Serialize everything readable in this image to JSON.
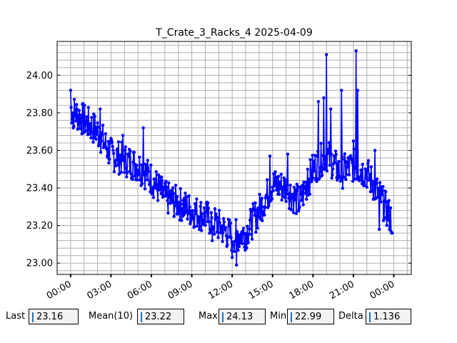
{
  "chart_data": {
    "type": "line",
    "title": "T_Crate_3_Racks_4 2025-04-09",
    "xlabel": "",
    "ylabel": "",
    "x_ticks": [
      "00:00",
      "03:00",
      "06:00",
      "09:00",
      "12:00",
      "15:00",
      "18:00",
      "21:00",
      "00:00"
    ],
    "x_tick_hours": [
      0,
      3,
      6,
      9,
      12,
      15,
      18,
      21,
      24
    ],
    "xlim_hours": [
      -1.0,
      25.3
    ],
    "y_ticks": [
      "23.00",
      "23.20",
      "23.40",
      "23.60",
      "23.80",
      "24.00"
    ],
    "y_tick_values": [
      23.0,
      23.2,
      23.4,
      23.6,
      23.8,
      24.0
    ],
    "ylim": [
      22.94,
      24.18
    ],
    "grid": true,
    "series": [
      {
        "color": "#0000ff",
        "marker": "circle",
        "trend": [
          [
            0.0,
            23.82
          ],
          [
            1.0,
            23.76
          ],
          [
            2.0,
            23.7
          ],
          [
            3.0,
            23.58
          ],
          [
            4.0,
            23.55
          ],
          [
            5.0,
            23.52
          ],
          [
            6.0,
            23.45
          ],
          [
            7.0,
            23.35
          ],
          [
            8.0,
            23.32
          ],
          [
            9.0,
            23.28
          ],
          [
            10.0,
            23.25
          ],
          [
            11.0,
            23.2
          ],
          [
            12.0,
            23.14
          ],
          [
            13.0,
            23.16
          ],
          [
            14.0,
            23.28
          ],
          [
            15.0,
            23.42
          ],
          [
            16.0,
            23.4
          ],
          [
            17.0,
            23.32
          ],
          [
            18.0,
            23.5
          ],
          [
            19.0,
            23.58
          ],
          [
            20.0,
            23.48
          ],
          [
            21.0,
            23.52
          ],
          [
            22.0,
            23.48
          ],
          [
            23.0,
            23.35
          ],
          [
            23.9,
            23.22
          ]
        ],
        "amplitude": 0.09,
        "spikes": [
          [
            0.0,
            23.92
          ],
          [
            0.2,
            23.72
          ],
          [
            2.2,
            23.82
          ],
          [
            3.9,
            23.68
          ],
          [
            5.4,
            23.72
          ],
          [
            10.5,
            23.12
          ],
          [
            12.0,
            23.03
          ],
          [
            12.3,
            22.99
          ],
          [
            14.8,
            23.57
          ],
          [
            16.1,
            23.58
          ],
          [
            17.6,
            23.5
          ],
          [
            18.4,
            23.86
          ],
          [
            18.8,
            23.88
          ],
          [
            19.0,
            24.11
          ],
          [
            19.3,
            23.82
          ],
          [
            20.1,
            23.92
          ],
          [
            21.0,
            23.65
          ],
          [
            21.2,
            24.13
          ],
          [
            21.3,
            23.92
          ],
          [
            22.6,
            23.6
          ],
          [
            22.9,
            23.18
          ],
          [
            23.6,
            23.28
          ],
          [
            23.9,
            23.16
          ]
        ]
      }
    ]
  },
  "stats": [
    {
      "label": "Last",
      "value": "23.16"
    },
    {
      "label": "Mean(10)",
      "value": "23.22"
    },
    {
      "label": "Max",
      "value": "24.13"
    },
    {
      "label": "Min",
      "value": "22.99"
    },
    {
      "label": "Delta",
      "value": "1.136"
    }
  ]
}
